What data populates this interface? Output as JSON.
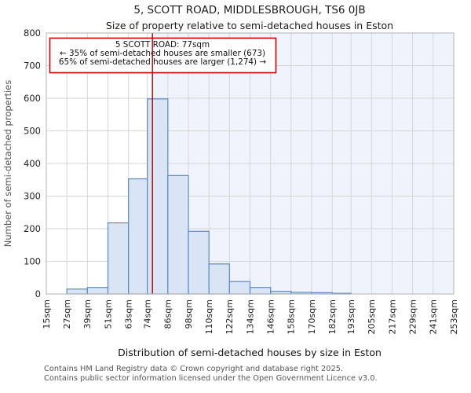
{
  "title": "5, SCOTT ROAD, MIDDLESBROUGH, TS6 0JB",
  "subtitle": "Size of property relative to semi-detached houses in Eston",
  "annotation": {
    "line1": "5 SCOTT ROAD: 77sqm",
    "line2": "← 35% of semi-detached houses are smaller (673)",
    "line3": "65% of semi-detached houses are larger (1,274) →"
  },
  "footer": {
    "line1": "Contains HM Land Registry data © Crown copyright and database right 2025.",
    "line2": "Contains public sector information licensed under the Open Government Licence v3.0."
  },
  "chart_data": {
    "type": "bar",
    "title": "5, SCOTT ROAD, MIDDLESBROUGH, TS6 0JB",
    "subtitle": "Size of property relative to semi-detached houses in Eston",
    "xlabel": "Distribution of semi-detached houses by size in Eston",
    "ylabel": "Number of semi-detached properties",
    "bin_edges_sqm": [
      15,
      27,
      39,
      51,
      63,
      74,
      86,
      98,
      110,
      122,
      134,
      146,
      158,
      170,
      182,
      193,
      205,
      217,
      229,
      241,
      253
    ],
    "x_tick_labels": [
      "15sqm",
      "27sqm",
      "39sqm",
      "51sqm",
      "63sqm",
      "74sqm",
      "86sqm",
      "98sqm",
      "110sqm",
      "122sqm",
      "134sqm",
      "146sqm",
      "158sqm",
      "170sqm",
      "182sqm",
      "193sqm",
      "205sqm",
      "217sqm",
      "229sqm",
      "241sqm",
      "253sqm"
    ],
    "counts": [
      0,
      15,
      20,
      218,
      353,
      598,
      363,
      192,
      92,
      38,
      20,
      8,
      5,
      4,
      2,
      0,
      0,
      0,
      0,
      0
    ],
    "xlim": [
      15,
      253
    ],
    "ylim": [
      0,
      800
    ],
    "y_ticks": [
      0,
      100,
      200,
      300,
      400,
      500,
      600,
      700,
      800
    ],
    "marker_value_sqm": 77,
    "grid": true,
    "legend": "none",
    "colors": {
      "bar_fill": "#d9e4f4",
      "bar_stroke": "#5b8ac5",
      "marker_line": "#b00000",
      "annotation_border": "#cc0000",
      "shade_right": "#eff3fb",
      "gridline": "#d6d6d6",
      "plot_border": "#b0b0b0"
    }
  }
}
